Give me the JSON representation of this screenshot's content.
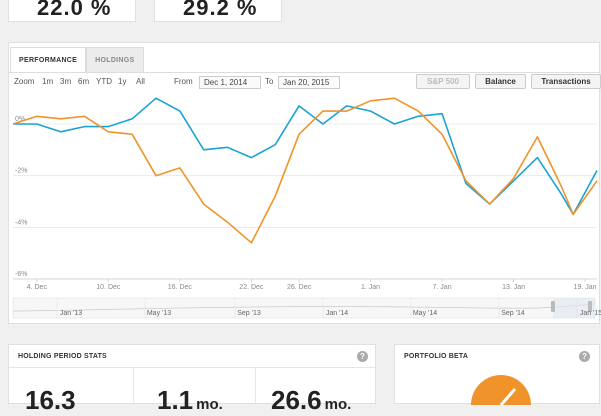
{
  "top_cards": [
    {
      "value": "22.0 %"
    },
    {
      "value": "29.2 %"
    }
  ],
  "tabs": [
    {
      "label": "PERFORMANCE",
      "active": true
    },
    {
      "label": "HOLDINGS",
      "active": false
    }
  ],
  "toolbar": {
    "zoom_label": "Zoom",
    "zoom_options": [
      "1m",
      "3m",
      "6m",
      "YTD",
      "1y",
      "All"
    ],
    "from_label": "From",
    "from_value": "Dec 1, 2014",
    "to_label": "To",
    "to_value": "Jan 20, 2015",
    "sp500_label": "S&P 500",
    "balance_label": "Balance",
    "transactions_label": "Transactions"
  },
  "chart_data": {
    "type": "line",
    "y_ticks": [
      "0%",
      "-2%",
      "-4%",
      "-6%"
    ],
    "y_tick_values": [
      0,
      -2,
      -4,
      -6
    ],
    "ylim": [
      -6,
      1.2
    ],
    "x_ticks": [
      "4. Dec",
      "10. Dec",
      "16. Dec",
      "22. Dec",
      "26. Dec",
      "1. Jan",
      "7. Jan",
      "13. Jan",
      "19. Jan"
    ],
    "x_tick_pos": [
      2,
      8,
      14,
      20,
      24,
      30,
      36,
      42,
      48
    ],
    "xlim": [
      0,
      49
    ],
    "colors": {
      "blue": "#1aa3d3",
      "orange": "#f0932b"
    },
    "series": [
      {
        "color": "#1aa3d3",
        "x": [
          0,
          2,
          4,
          6,
          8,
          10,
          12,
          14,
          16,
          18,
          20,
          22,
          24,
          26,
          28,
          30,
          32,
          34,
          36,
          38,
          40,
          42,
          44,
          46,
          47,
          49
        ],
        "y": [
          0,
          0,
          -0.3,
          -0.1,
          -0.1,
          0.2,
          1.0,
          0.5,
          -1.0,
          -0.9,
          -1.3,
          -0.8,
          0.7,
          0.0,
          0.7,
          0.5,
          0.0,
          0.3,
          0.4,
          -2.3,
          -3.1,
          -2.2,
          -1.3,
          -2.7,
          -3.5,
          -1.8
        ]
      },
      {
        "color": "#f0932b",
        "x": [
          0,
          2,
          4,
          6,
          8,
          10,
          12,
          14,
          16,
          18,
          20,
          22,
          24,
          26,
          28,
          30,
          32,
          34,
          36,
          38,
          40,
          42,
          44,
          46,
          47,
          49
        ],
        "y": [
          0,
          0.3,
          0.2,
          0.3,
          -0.3,
          -0.4,
          -2.0,
          -1.7,
          -3.1,
          -3.8,
          -4.6,
          -2.8,
          -0.4,
          0.5,
          0.5,
          0.9,
          1.0,
          0.5,
          -0.4,
          -2.2,
          -3.1,
          -2.1,
          -0.5,
          -2.4,
          -3.5,
          -2.2
        ]
      }
    ],
    "navigator_labels": [
      "Jan '13",
      "May '13",
      "Sep '13",
      "Jan '14",
      "May '14",
      "Sep '14",
      "Jan '15"
    ]
  },
  "stats_card": {
    "title": "HOLDING PERIOD STATS",
    "help": "?",
    "stats": [
      {
        "value": "16.3",
        "unit": ""
      },
      {
        "value": "1.1",
        "unit": "mo."
      },
      {
        "value": "26.6",
        "unit": "mo."
      }
    ]
  },
  "beta_card": {
    "title": "PORTFOLIO BETA",
    "help": "?"
  }
}
